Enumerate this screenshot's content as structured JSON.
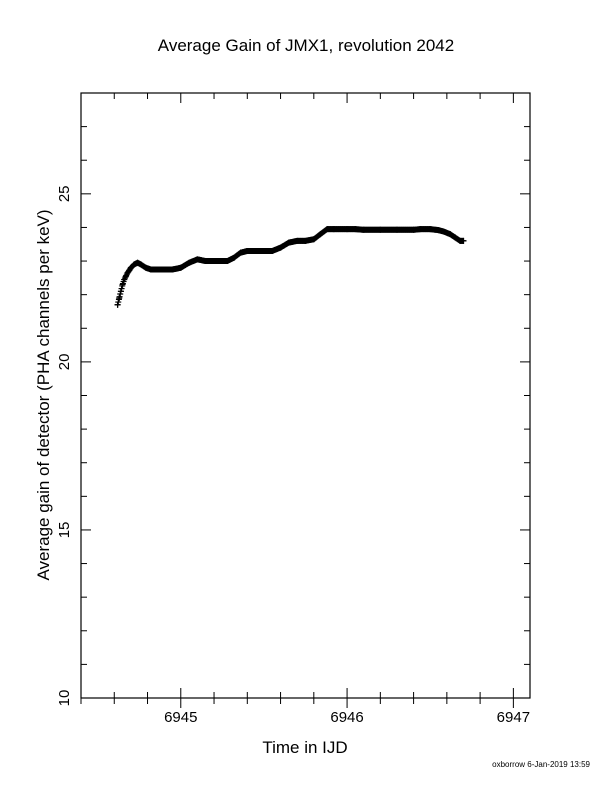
{
  "chart_data": {
    "type": "scatter",
    "title": "Average Gain of JMX1, revolution 2042",
    "xlabel": "Time in IJD",
    "ylabel": "Average gain of detector (PHA channels per keV)",
    "xlim": [
      6944.4,
      6947.1
    ],
    "ylim": [
      10,
      28
    ],
    "x_ticks": [
      "6945",
      "6946",
      "6947"
    ],
    "y_ticks": [
      "10",
      "15",
      "20",
      "25"
    ],
    "marker": "+",
    "series": [
      {
        "x": [
          6944.62,
          6944.63,
          6944.64,
          6944.65,
          6944.66,
          6944.67,
          6944.68,
          6944.69,
          6944.7,
          6944.72,
          6944.74,
          6944.76,
          6944.79,
          6944.82,
          6944.85,
          6944.9,
          6944.95,
          6945.0,
          6945.05,
          6945.1,
          6945.15,
          6945.2,
          6945.25,
          6945.28,
          6945.32,
          6945.36,
          6945.4,
          6945.45,
          6945.5,
          6945.55,
          6945.6,
          6945.65,
          6945.7,
          6945.75,
          6945.8,
          6945.84,
          6945.88,
          6945.92,
          6946.0,
          6946.05,
          6946.1,
          6946.2,
          6946.3,
          6946.4,
          6946.44,
          6946.5,
          6946.55,
          6946.58,
          6946.62,
          6946.65,
          6946.68,
          6946.7
        ],
        "y": [
          21.7,
          21.9,
          22.1,
          22.3,
          22.45,
          22.55,
          22.65,
          22.72,
          22.8,
          22.9,
          22.95,
          22.9,
          22.8,
          22.75,
          22.75,
          22.75,
          22.75,
          22.8,
          22.95,
          23.05,
          23.0,
          23.0,
          23.0,
          23.0,
          23.1,
          23.25,
          23.3,
          23.3,
          23.3,
          23.3,
          23.4,
          23.55,
          23.6,
          23.6,
          23.65,
          23.8,
          23.95,
          23.95,
          23.95,
          23.95,
          23.93,
          23.93,
          23.93,
          23.93,
          23.95,
          23.95,
          23.92,
          23.88,
          23.8,
          23.7,
          23.6,
          23.6
        ]
      }
    ]
  },
  "footer": "oxborrow  6-Jan-2019 13:59"
}
